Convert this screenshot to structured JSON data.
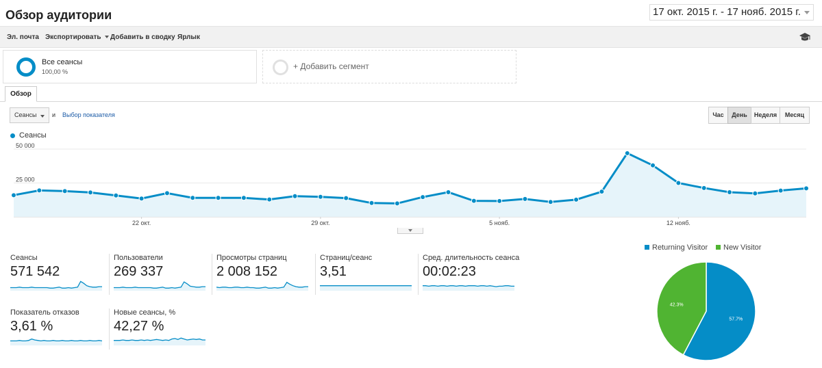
{
  "header": {
    "title": "Обзор аудитории",
    "date_range": "17 окт. 2015 г. - 17 нояб. 2015 г."
  },
  "toolbar": {
    "email": "Эл. почта",
    "export": "Экспортировать",
    "add_to_dashboard": "Добавить в сводку",
    "shortcut": "Ярлык"
  },
  "segments": {
    "all_title": "Все сеансы",
    "all_percent": "100,00 %",
    "add_label": "+ Добавить сегмент"
  },
  "tabs": {
    "overview": "Обзор"
  },
  "controls": {
    "metric_select": "Сеансы",
    "and_text": "и",
    "metric_link": "Выбор показателя",
    "granularity": [
      "Час",
      "День",
      "Неделя",
      "Месяц"
    ],
    "granularity_active": "День"
  },
  "colors": {
    "accent": "#058dc7",
    "fill": "#e6f4fa",
    "returning": "#058dc7",
    "new": "#50b432"
  },
  "chart_data": [
    {
      "type": "line",
      "title": "",
      "legend": [
        "Сеансы"
      ],
      "y_ticks": [
        "50 000",
        "25 000"
      ],
      "y_tick_values": [
        50000,
        25000
      ],
      "ylim": [
        0,
        50000
      ],
      "x_ticks": [
        "22 окт.",
        "29 окт.",
        "5 нояб.",
        "12 нояб."
      ],
      "x_tick_index": [
        5,
        12,
        19,
        26
      ],
      "series": [
        {
          "name": "Сеансы",
          "values": [
            16000,
            19500,
            19000,
            18000,
            15800,
            13500,
            17500,
            14000,
            14000,
            14000,
            12800,
            15300,
            14800,
            13800,
            10200,
            9900,
            14600,
            18200,
            11800,
            11700,
            13200,
            11000,
            12700,
            18600,
            47000,
            38000,
            25000,
            21300,
            18200,
            17300,
            19400,
            21000
          ]
        }
      ]
    },
    {
      "type": "pie",
      "legend": [
        "Returning Visitor",
        "New Visitor"
      ],
      "labels": [
        "57.7%",
        "42.3%"
      ],
      "values": [
        57.7,
        42.3
      ]
    }
  ],
  "metrics": [
    {
      "label": "Сеансы",
      "value": "571 542",
      "spark": [
        5,
        5,
        5,
        6,
        5,
        5,
        5,
        6,
        5,
        5,
        5,
        5,
        5,
        4,
        4,
        5,
        6,
        4,
        4,
        5,
        4,
        5,
        6,
        18,
        14,
        9,
        7,
        6,
        6,
        7,
        7
      ]
    },
    {
      "label": "Пользователи",
      "value": "269 337",
      "spark": [
        5,
        5,
        5,
        6,
        5,
        5,
        5,
        6,
        5,
        5,
        5,
        5,
        5,
        4,
        4,
        5,
        6,
        4,
        4,
        5,
        4,
        5,
        6,
        17,
        13,
        8,
        7,
        6,
        6,
        7,
        7
      ]
    },
    {
      "label": "Просмотры страниц",
      "value": "2 008 152",
      "spark": [
        6,
        5,
        6,
        6,
        5,
        5,
        6,
        6,
        5,
        5,
        6,
        5,
        5,
        4,
        4,
        5,
        6,
        4,
        4,
        5,
        4,
        5,
        6,
        16,
        12,
        9,
        7,
        6,
        6,
        7,
        7
      ]
    },
    {
      "label": "Страниц/сеанс",
      "value": "3,51",
      "spark": [
        9,
        9,
        9,
        9,
        9,
        9,
        9,
        9,
        9,
        9,
        9,
        9,
        9,
        9,
        9,
        9,
        9,
        9,
        9,
        9,
        9,
        9,
        9,
        9,
        9,
        9,
        9,
        9,
        9,
        9,
        9
      ]
    },
    {
      "label": "Сред. длительность сеанса",
      "value": "00:02:23",
      "spark": [
        9,
        9,
        8,
        9,
        9,
        8,
        9,
        9,
        8,
        9,
        9,
        8,
        9,
        9,
        8,
        9,
        9,
        9,
        8,
        9,
        9,
        8,
        9,
        8,
        7,
        8,
        8,
        9,
        9,
        8,
        8
      ]
    },
    {
      "label": "Показатель отказов",
      "value": "3,61 %",
      "spark": [
        8,
        8,
        8,
        9,
        8,
        8,
        9,
        12,
        10,
        9,
        8,
        9,
        8,
        8,
        9,
        8,
        8,
        9,
        8,
        8,
        9,
        8,
        8,
        9,
        8,
        8,
        9,
        8,
        8,
        9,
        8
      ]
    },
    {
      "label": "Новые сеансы, %",
      "value": "42,27 %",
      "spark": [
        9,
        9,
        9,
        10,
        9,
        9,
        10,
        9,
        9,
        10,
        9,
        10,
        9,
        10,
        11,
        10,
        9,
        10,
        9,
        12,
        13,
        11,
        14,
        12,
        10,
        11,
        12,
        11,
        12,
        10,
        10
      ]
    }
  ]
}
